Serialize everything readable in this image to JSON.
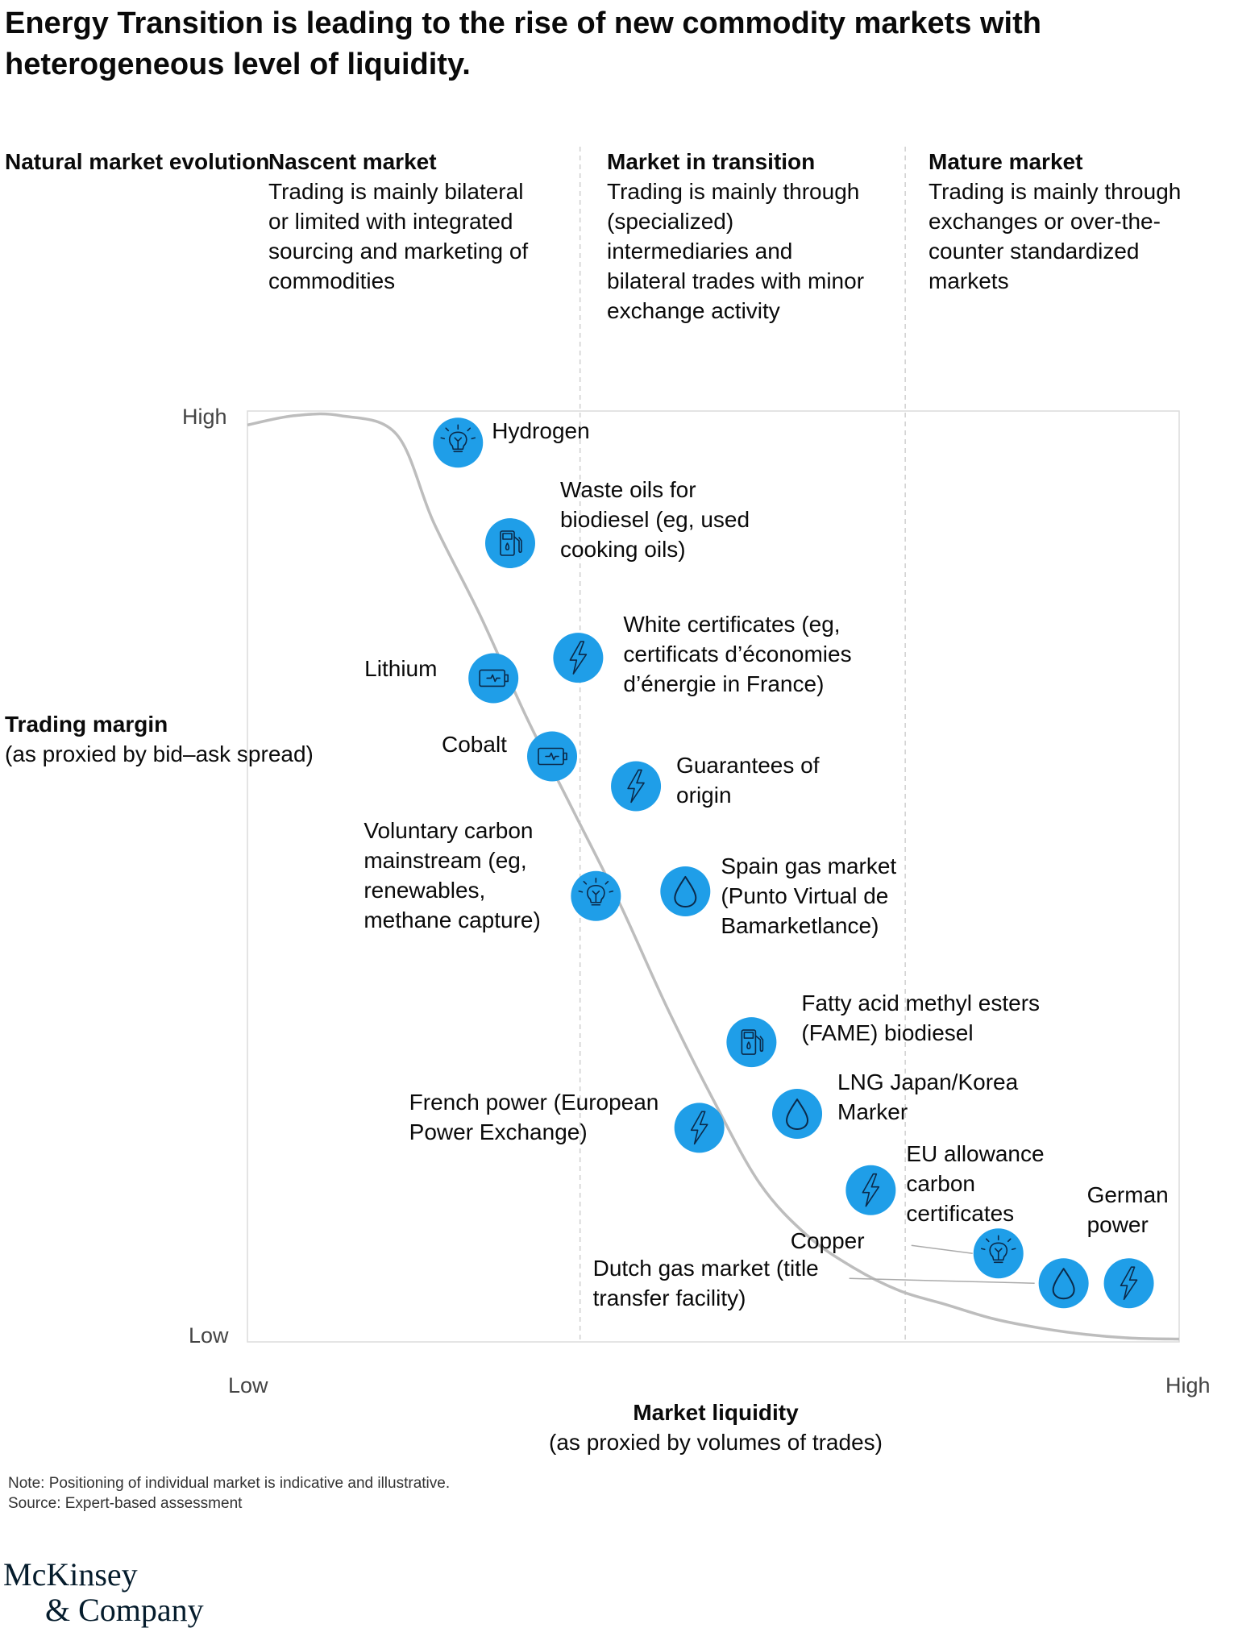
{
  "title": "Energy Transition is leading to the rise of new commodity markets with heterogeneous level of liquidity.",
  "evolution_label": "Natural market evolution",
  "phases": [
    {
      "name": "Nascent market",
      "description": "Trading is mainly bilateral or limited with integrated sourcing and marketing of commodities"
    },
    {
      "name": "Market in transition",
      "description": "Trading is mainly through (specialized) intermediaries and bilateral trades with minor exchange activity"
    },
    {
      "name": "Mature market",
      "description": "Trading is mainly through exchanges or over-the-counter standardized markets"
    }
  ],
  "y_axis": {
    "title": "Trading margin",
    "subtitle": "(as proxied by bid–ask spread)",
    "low": "Low",
    "high": "High"
  },
  "x_axis": {
    "title": "Market liquidity",
    "subtitle": "(as proxied by volumes of trades)",
    "low": "Low",
    "high": "High"
  },
  "notes": {
    "note": "Note: Positioning of individual market is indicative and illustrative.",
    "source": "Source: Expert-based assessment"
  },
  "logo": {
    "line1": "McKinsey",
    "line2": "& Company"
  },
  "colors": {
    "accent": "#1f9ee8",
    "curve": "#bdbdbd",
    "divider": "#cfcfcf",
    "frame": "#dcdcdc"
  },
  "chart_data": {
    "type": "scatter",
    "title": "",
    "xlabel": "Market liquidity",
    "ylabel": "Trading margin",
    "xlim": [
      0,
      1
    ],
    "ylim": [
      0,
      1
    ],
    "phase_boundaries": [
      0.357,
      0.706
    ],
    "curve": {
      "x": [
        0.0,
        0.05,
        0.1,
        0.16,
        0.2,
        0.25,
        0.3,
        0.35,
        0.4,
        0.45,
        0.5,
        0.55,
        0.6,
        0.65,
        0.7,
        0.75,
        0.8,
        0.85,
        0.9,
        0.95,
        1.0
      ],
      "y": [
        0.985,
        0.995,
        0.995,
        0.975,
        0.88,
        0.78,
        0.67,
        0.57,
        0.47,
        0.36,
        0.26,
        0.17,
        0.115,
        0.08,
        0.055,
        0.04,
        0.025,
        0.015,
        0.008,
        0.004,
        0.003
      ]
    },
    "points": [
      {
        "label": "Hydrogen",
        "icon": "lightbulb-icon",
        "x": 0.226,
        "y": 0.966,
        "label_side": "right"
      },
      {
        "label": "Waste oils for biodiesel (eg, used cooking oils)",
        "icon": "fuel-pump-icon",
        "x": 0.282,
        "y": 0.858,
        "label_side": "right-top"
      },
      {
        "label": "White certificates (eg, certificats d’économies d’énergie in France)",
        "icon": "lightning-icon",
        "x": 0.355,
        "y": 0.735,
        "label_side": "right"
      },
      {
        "label": "Lithium",
        "icon": "battery-icon",
        "x": 0.264,
        "y": 0.713,
        "label_side": "left"
      },
      {
        "label": "Cobalt",
        "icon": "battery-icon",
        "x": 0.327,
        "y": 0.629,
        "label_side": "left"
      },
      {
        "label": "Guarantees of origin",
        "icon": "lightning-icon",
        "x": 0.417,
        "y": 0.597,
        "label_side": "right"
      },
      {
        "label": "Voluntary carbon mainstream (eg, renewables, methane capture)",
        "icon": "lightbulb-icon",
        "x": 0.374,
        "y": 0.479,
        "label_side": "left"
      },
      {
        "label": "Spain gas market (Punto Virtual de Bamarketlance)",
        "icon": "water-drop-icon",
        "x": 0.47,
        "y": 0.484,
        "label_side": "right"
      },
      {
        "label": "Fatty acid methyl esters (FAME) biodiesel",
        "icon": "fuel-pump-icon",
        "x": 0.541,
        "y": 0.322,
        "label_side": "right-top"
      },
      {
        "label": "French power (European Power Exchange)",
        "icon": "lightning-icon",
        "x": 0.485,
        "y": 0.23,
        "label_side": "left"
      },
      {
        "label": "LNG Japan/Korea Marker",
        "icon": "water-drop-icon",
        "x": 0.59,
        "y": 0.245,
        "label_side": "right"
      },
      {
        "label": "EU allowance carbon certificates",
        "icon": "lightning-icon",
        "x": 0.669,
        "y": 0.163,
        "label_side": "right"
      },
      {
        "label": "Copper",
        "icon": "lightbulb-icon",
        "x": 0.806,
        "y": 0.095,
        "label_side": "left-leader"
      },
      {
        "label": "Dutch gas market (title transfer facility)",
        "icon": "water-drop-icon",
        "x": 0.876,
        "y": 0.063,
        "label_side": "left-leader"
      },
      {
        "label": "German power",
        "icon": "lightning-icon",
        "x": 0.946,
        "y": 0.063,
        "label_side": "right-top"
      }
    ]
  }
}
